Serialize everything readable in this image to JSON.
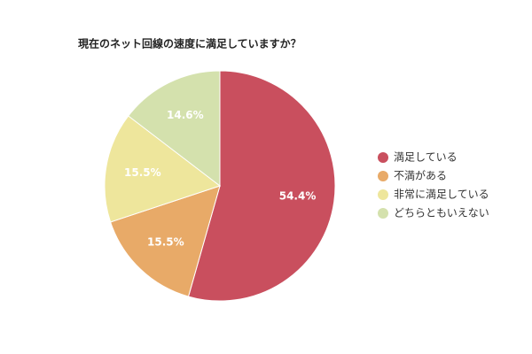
{
  "chart_data": {
    "type": "pie",
    "title": "現在のネット回線の速度に満足していますか？",
    "categories": [
      "満足している",
      "不満がある",
      "非常に満足している",
      "どちらともいえない"
    ],
    "values": [
      54.4,
      15.5,
      15.5,
      14.6
    ],
    "value_labels": [
      "54.4%",
      "15.5%",
      "15.5%",
      "14.6%"
    ],
    "colors": [
      "#c94f5e",
      "#e8aa68",
      "#eee69c",
      "#d4e1ad"
    ],
    "legend": "right"
  }
}
